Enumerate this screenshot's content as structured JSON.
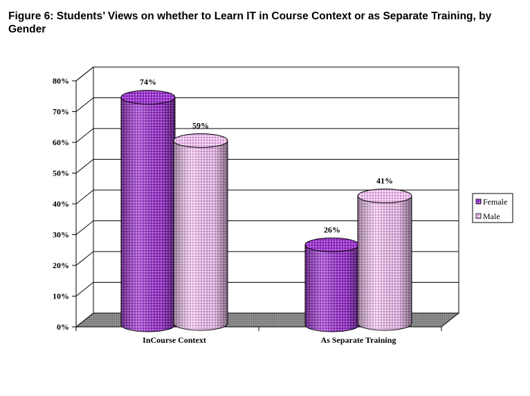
{
  "title": "Figure 6: Students’ Views on whether to Learn IT in Course Context or as Separate Training, by Gender",
  "chart_data": {
    "type": "bar",
    "title": "Figure 6: Students’ Views on whether to Learn IT in Course Context or as Separate Training, by Gender",
    "categories": [
      "InCourse Context",
      "As Separate Training"
    ],
    "series": [
      {
        "name": "Female",
        "values": [
          74,
          26
        ],
        "labels": [
          "74%",
          "26%"
        ],
        "color": "#9933cc"
      },
      {
        "name": "Male",
        "values": [
          59,
          41
        ],
        "labels": [
          "59%",
          "41%"
        ],
        "color": "#e8b8e8"
      }
    ],
    "yticks": [
      "0%",
      "10%",
      "20%",
      "30%",
      "40%",
      "50%",
      "60%",
      "70%",
      "80%"
    ],
    "ylim": [
      0,
      80
    ],
    "grid": true,
    "legend": "right",
    "style": "3d-cylinder"
  }
}
